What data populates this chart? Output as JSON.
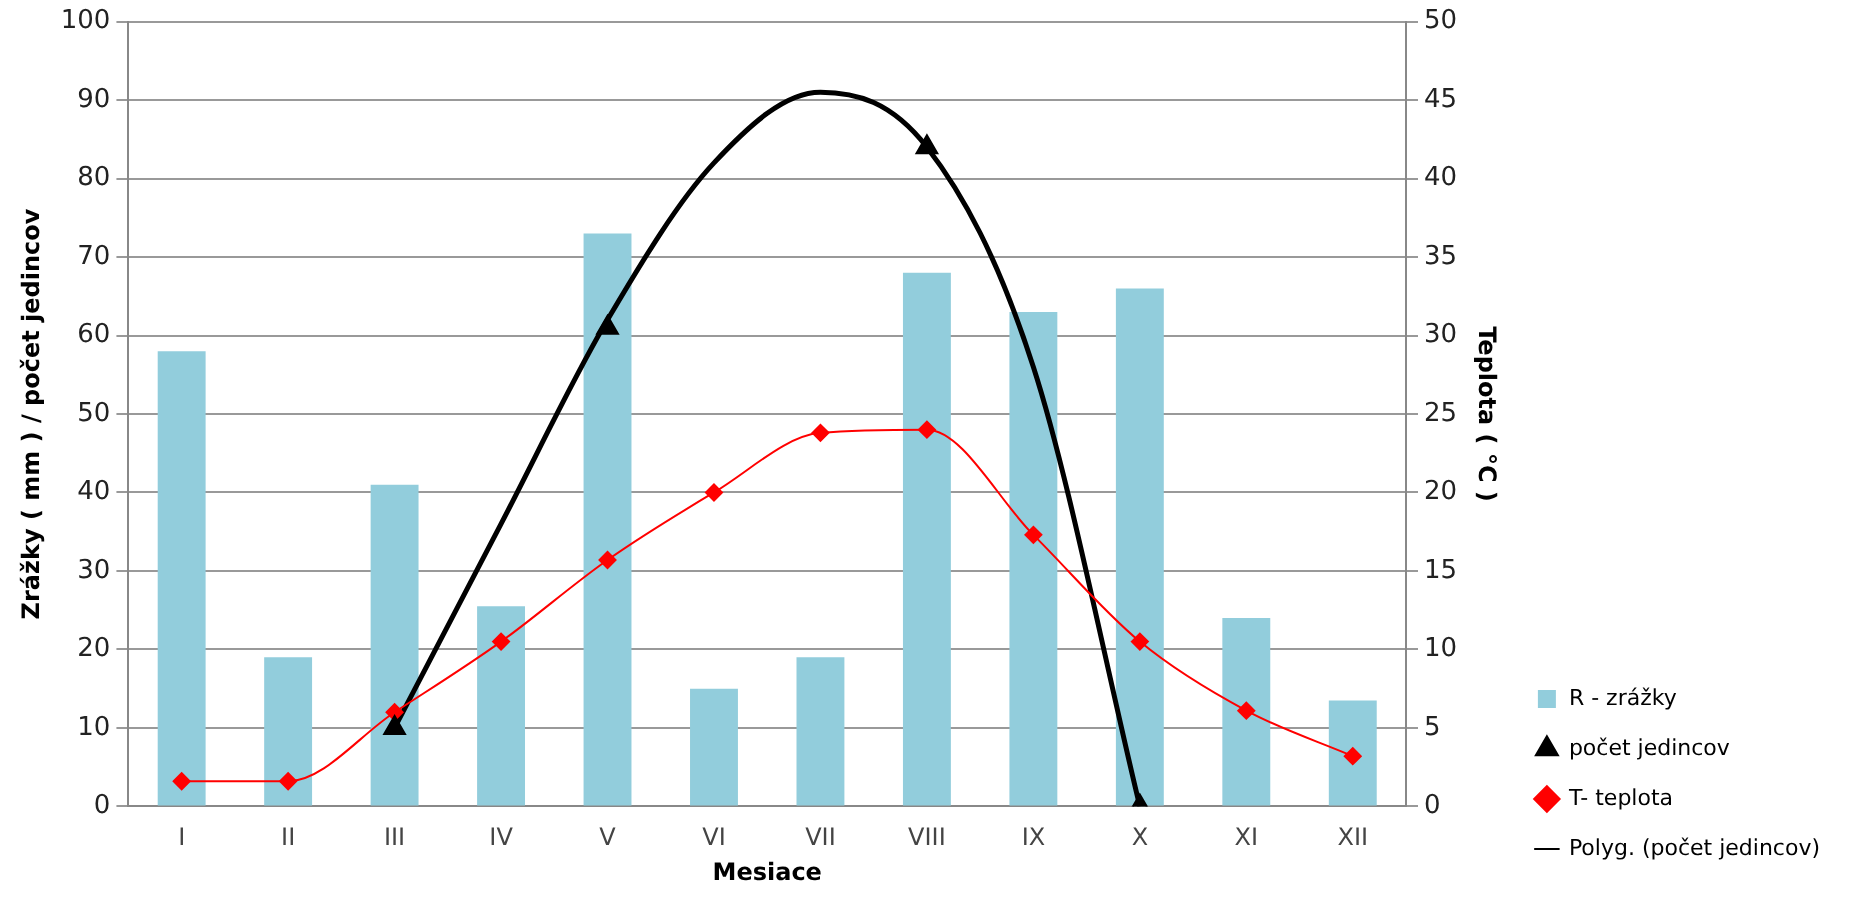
{
  "chart_data": {
    "type": "bar",
    "categories": [
      "I",
      "II",
      "III",
      "IV",
      "V",
      "VI",
      "VII",
      "VIII",
      "IX",
      "X",
      "XI",
      "XII"
    ],
    "xlabel": "Mesiace",
    "ylabel": "Zrážky ( mm ) / počet jedincov",
    "y2label": "Teplota ( °C )",
    "series": [
      {
        "name": "R - zrážky",
        "color": "#92cddc",
        "values": [
          58,
          19,
          41,
          25.5,
          73,
          15,
          19,
          68,
          63,
          66,
          24,
          13.5
        ]
      },
      {
        "name": "počet jedincov",
        "type": "scatter",
        "marker": "triangle",
        "color": "#000000",
        "values": [
          null,
          null,
          10,
          null,
          61,
          null,
          null,
          84,
          null,
          0,
          null,
          null
        ]
      },
      {
        "name": "T- teplota",
        "type": "line",
        "axis": "y2",
        "marker": "diamond",
        "color": "#ff0000",
        "values": [
          1.6,
          1.6,
          6,
          10.5,
          15.7,
          20,
          23.8,
          24,
          17.3,
          10.5,
          6.1,
          3.2
        ]
      },
      {
        "name": "Polyg. (počet jedincov)",
        "type": "line",
        "marker": "none",
        "color": "#000000",
        "values": [
          null,
          null,
          10,
          36,
          62,
          82,
          91,
          84,
          56,
          0,
          null,
          null
        ]
      }
    ],
    "ylim": [
      0,
      100
    ],
    "yticks": [
      0,
      10,
      20,
      30,
      40,
      50,
      60,
      70,
      80,
      90,
      100
    ],
    "y2lim": [
      0,
      50
    ],
    "y2ticks": [
      0,
      5,
      10,
      15,
      20,
      25,
      30,
      35,
      40,
      45,
      50
    ],
    "grid": "y",
    "legend": "right"
  }
}
